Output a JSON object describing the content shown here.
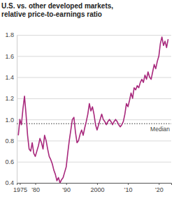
{
  "chart_data": {
    "type": "line",
    "title": "U.S. vs. other developed markets, relative price-to-earnings ratio",
    "color": "#a8287c",
    "x": [
      1974.5,
      1975,
      1975.5,
      1976,
      1976.5,
      1977,
      1977.5,
      1978,
      1978.5,
      1979,
      1979.5,
      1980,
      1980.5,
      1981,
      1981.5,
      1982,
      1982.5,
      1983,
      1983.5,
      1984,
      1984.5,
      1985,
      1985.5,
      1986,
      1986.5,
      1987,
      1987.5,
      1988,
      1988.5,
      1989,
      1989.5,
      1990,
      1990.5,
      1991,
      1991.5,
      1992,
      1992.5,
      1993,
      1993.5,
      1994,
      1994.5,
      1995,
      1995.5,
      1996,
      1996.5,
      1997,
      1997.5,
      1998,
      1998.5,
      1999,
      1999.5,
      2000,
      2000.5,
      2001,
      2001.5,
      2002,
      2002.5,
      2003,
      2003.5,
      2004,
      2004.5,
      2005,
      2005.5,
      2006,
      2006.5,
      2007,
      2007.5,
      2008,
      2008.5,
      2009,
      2009.5,
      2010,
      2010.5,
      2011,
      2011.5,
      2012,
      2012.5,
      2013,
      2013.5,
      2014,
      2014.5,
      2015,
      2015.5,
      2016,
      2016.5,
      2017,
      2017.5,
      2018,
      2018.5,
      2019,
      2019.5,
      2020,
      2020.5,
      2021,
      2021.5,
      2022,
      2022.5,
      2023
    ],
    "values": [
      0.85,
      1.0,
      0.95,
      1.1,
      1.22,
      1.05,
      0.85,
      0.72,
      0.7,
      0.78,
      0.68,
      0.65,
      0.7,
      0.75,
      0.82,
      0.78,
      0.72,
      0.85,
      0.8,
      0.72,
      0.65,
      0.62,
      0.58,
      0.52,
      0.48,
      0.42,
      0.45,
      0.4,
      0.43,
      0.45,
      0.5,
      0.55,
      0.68,
      0.8,
      0.9,
      1.0,
      1.02,
      0.88,
      0.78,
      0.8,
      0.86,
      0.9,
      0.85,
      0.92,
      0.98,
      1.05,
      1.15,
      1.08,
      1.12,
      1.05,
      0.95,
      0.9,
      0.95,
      1.0,
      1.05,
      1.0,
      0.98,
      0.95,
      0.98,
      1.0,
      0.98,
      0.95,
      0.98,
      1.0,
      0.98,
      0.95,
      0.93,
      0.95,
      0.98,
      1.05,
      1.15,
      1.12,
      1.18,
      1.25,
      1.2,
      1.3,
      1.28,
      1.32,
      1.3,
      1.35,
      1.38,
      1.35,
      1.42,
      1.38,
      1.45,
      1.4,
      1.38,
      1.45,
      1.52,
      1.48,
      1.55,
      1.6,
      1.72,
      1.78,
      1.7,
      1.74,
      1.68,
      1.76
    ],
    "xlim": [
      1974,
      2024
    ],
    "xticks": [
      1975,
      {
        "value": 1980,
        "label": "'80"
      },
      {
        "value": 1990,
        "label": "'90"
      },
      2000,
      {
        "value": 2010,
        "label": "'10"
      },
      {
        "value": 2020,
        "label": "'20"
      }
    ],
    "ylim": [
      0.4,
      1.8
    ],
    "yticks": [
      0.4,
      0.6,
      0.8,
      {
        "value": 1,
        "label": "1.0"
      },
      1.2,
      1.4,
      1.6,
      1.8
    ],
    "grid": true,
    "median": {
      "value": 0.96,
      "label": "Median"
    }
  }
}
